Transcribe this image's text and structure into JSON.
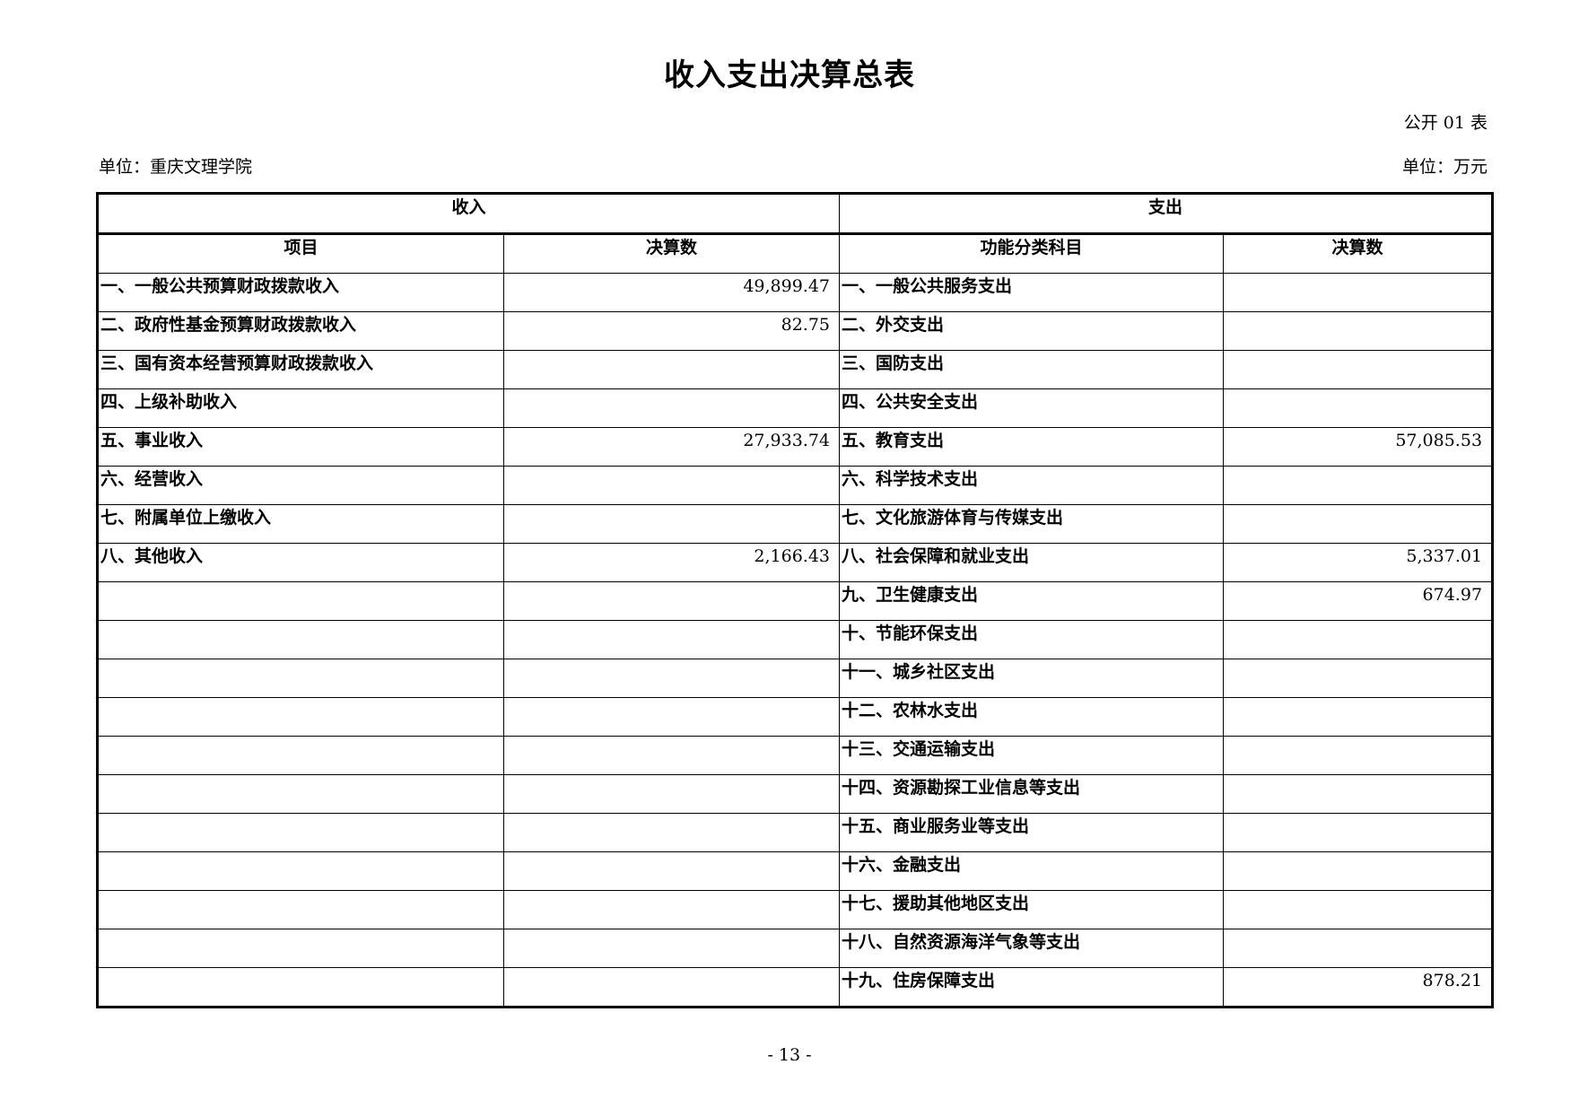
{
  "title": "收入支出决算总表",
  "table_no": "公开 01 表",
  "unit_org": "单位：重庆文理学院",
  "unit_currency": "单位：万元",
  "headers": {
    "income": "收入",
    "expense": "支出",
    "item": "项目",
    "amount": "决算数",
    "func": "功能分类科目",
    "amount2": "决算数"
  },
  "rows": [
    {
      "in_name": "一、一般公共预算财政拨款收入",
      "in_val": "49,899.47",
      "ex_name": "一、一般公共服务支出",
      "ex_val": ""
    },
    {
      "in_name": "二、政府性基金预算财政拨款收入",
      "in_val": "82.75",
      "ex_name": "二、外交支出",
      "ex_val": ""
    },
    {
      "in_name": "三、国有资本经营预算财政拨款收入",
      "in_val": "",
      "ex_name": "三、国防支出",
      "ex_val": ""
    },
    {
      "in_name": "四、上级补助收入",
      "in_val": "",
      "ex_name": "四、公共安全支出",
      "ex_val": ""
    },
    {
      "in_name": "五、事业收入",
      "in_val": "27,933.74",
      "ex_name": "五、教育支出",
      "ex_val": "57,085.53"
    },
    {
      "in_name": "六、经营收入",
      "in_val": "",
      "ex_name": "六、科学技术支出",
      "ex_val": ""
    },
    {
      "in_name": "七、附属单位上缴收入",
      "in_val": "",
      "ex_name": "七、文化旅游体育与传媒支出",
      "ex_val": ""
    },
    {
      "in_name": "八、其他收入",
      "in_val": "2,166.43",
      "ex_name": "八、社会保障和就业支出",
      "ex_val": "5,337.01"
    },
    {
      "in_name": "",
      "in_val": "",
      "ex_name": "九、卫生健康支出",
      "ex_val": "674.97"
    },
    {
      "in_name": "",
      "in_val": "",
      "ex_name": "十、节能环保支出",
      "ex_val": ""
    },
    {
      "in_name": "",
      "in_val": "",
      "ex_name": "十一、城乡社区支出",
      "ex_val": ""
    },
    {
      "in_name": "",
      "in_val": "",
      "ex_name": "十二、农林水支出",
      "ex_val": ""
    },
    {
      "in_name": "",
      "in_val": "",
      "ex_name": "十三、交通运输支出",
      "ex_val": ""
    },
    {
      "in_name": "",
      "in_val": "",
      "ex_name": "十四、资源勘探工业信息等支出",
      "ex_val": ""
    },
    {
      "in_name": "",
      "in_val": "",
      "ex_name": "十五、商业服务业等支出",
      "ex_val": ""
    },
    {
      "in_name": "",
      "in_val": "",
      "ex_name": "十六、金融支出",
      "ex_val": ""
    },
    {
      "in_name": "",
      "in_val": "",
      "ex_name": "十七、援助其他地区支出",
      "ex_val": ""
    },
    {
      "in_name": "",
      "in_val": "",
      "ex_name": "十八、自然资源海洋气象等支出",
      "ex_val": ""
    },
    {
      "in_name": "",
      "in_val": "",
      "ex_name": "十九、住房保障支出",
      "ex_val": "878.21"
    }
  ],
  "page_number": "- 13 -"
}
